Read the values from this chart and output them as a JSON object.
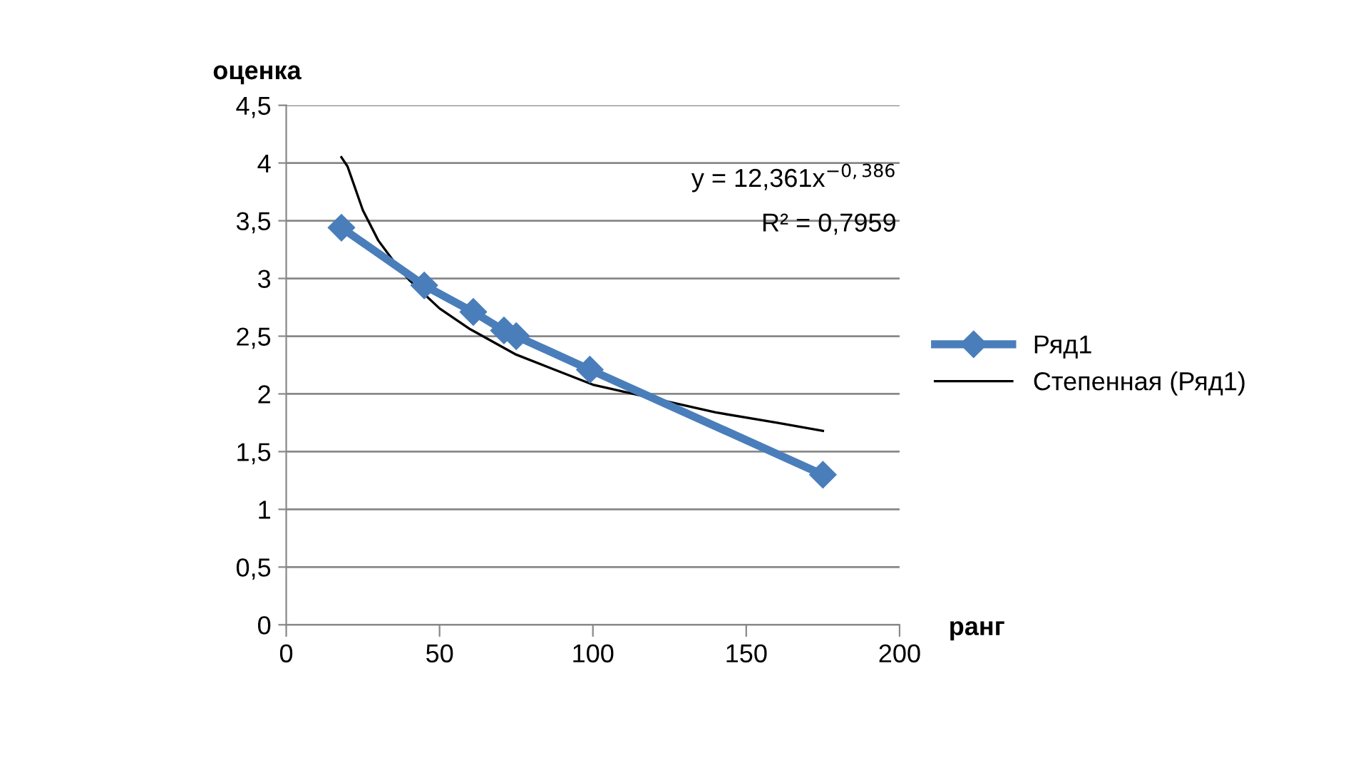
{
  "chart_data": {
    "type": "line",
    "xlabel": "ранг",
    "ylabel": "оценка",
    "x": [
      18,
      45,
      61,
      71,
      75,
      99,
      175
    ],
    "series": [
      {
        "name": "Ряд1",
        "color": "#4a7ebb",
        "marker": "diamond",
        "line_style": "solid",
        "values": [
          3.44,
          2.94,
          2.71,
          2.55,
          2.5,
          2.21,
          1.3
        ]
      },
      {
        "name": "Степенная (Ряд1)",
        "color": "#000000",
        "marker": "none",
        "line_style": "solid",
        "x": [
          18,
          20,
          25,
          30,
          35,
          40,
          50,
          60,
          75,
          100,
          140,
          160,
          175
        ],
        "values": [
          4.05,
          3.97,
          3.59,
          3.33,
          3.15,
          2.99,
          2.74,
          2.56,
          2.34,
          2.08,
          1.84,
          1.75,
          1.68
        ]
      }
    ],
    "annotations": [
      "y = 12,361x$^{−0,386}$",
      "R² = 0,7959"
    ],
    "xlim": [
      0,
      200
    ],
    "xticks": [
      0,
      50,
      100,
      150,
      200
    ],
    "ylim": [
      0,
      4.5
    ],
    "yticks": [
      0,
      {
        "value": 0.5,
        "label": "0,5"
      },
      1,
      {
        "value": 1.5,
        "label": "1,5"
      },
      2,
      {
        "value": 2.5,
        "label": "2,5"
      },
      3,
      {
        "value": 3.5,
        "label": "3,5"
      },
      4,
      {
        "value": 4.5,
        "label": "4,5"
      }
    ],
    "grid": "y",
    "legend": "right"
  }
}
